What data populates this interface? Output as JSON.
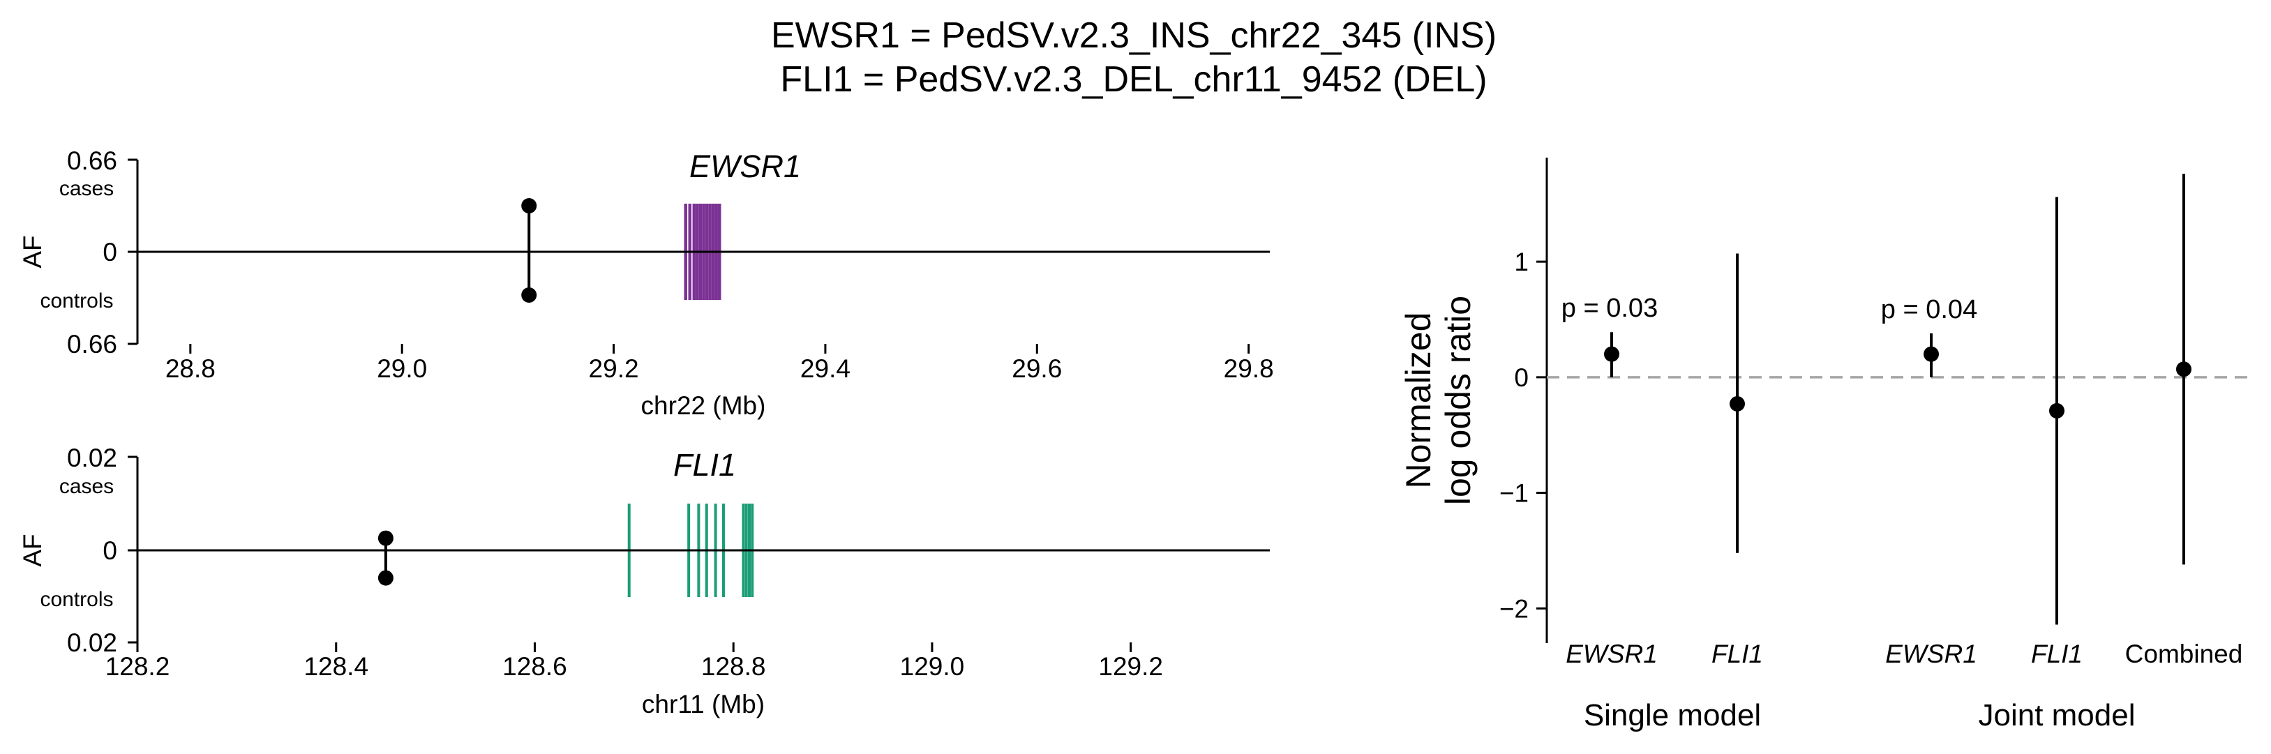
{
  "title_lines": [
    "EWSR1 = PedSV.v2.3_INS_chr22_345 (INS)",
    "FLI1 = PedSV.v2.3_DEL_chr11_9452 (DEL)"
  ],
  "colors": {
    "ewsr1": "#7b3294",
    "fli1": "#1b9e77",
    "point": "#000000",
    "reference": "#a6a6a6"
  },
  "chart_data": [
    {
      "type": "scatter",
      "gene": "EWSR1",
      "xlabel": "chr22 (Mb)",
      "ylabel": "AF",
      "xlim": [
        28.75,
        29.82
      ],
      "xticks": [
        28.8,
        29.0,
        29.2,
        29.4,
        29.6,
        29.8
      ],
      "xtick_labels": [
        "28.8",
        "29.0",
        "29.2",
        "29.4",
        "29.6",
        "29.8"
      ],
      "ylim": [
        -0.66,
        0.66
      ],
      "ytick_labels": [
        "0.66",
        "0",
        "0.66"
      ],
      "top_label": "cases",
      "bottom_label": "controls",
      "variant": {
        "x": 29.12,
        "cases": 0.33,
        "controls": -0.31
      },
      "gene_feature_color": "ewsr1",
      "exons": [
        29.268,
        29.272,
        29.276,
        29.279,
        29.282,
        29.285,
        29.288,
        29.291,
        29.294,
        29.297,
        29.3
      ]
    },
    {
      "type": "scatter",
      "gene": "FLI1",
      "xlabel": "chr11 (Mb)",
      "ylabel": "AF",
      "xlim": [
        128.2,
        129.34
      ],
      "xticks": [
        128.2,
        128.4,
        128.6,
        128.8,
        129.0,
        129.2
      ],
      "xtick_labels": [
        "128.2",
        "128.4",
        "128.6",
        "128.8",
        "129.0",
        "129.2"
      ],
      "ylim": [
        -0.02,
        0.02
      ],
      "ytick_labels": [
        "0.02",
        "0",
        "0.02"
      ],
      "top_label": "cases",
      "bottom_label": "controls",
      "variant": {
        "x": 128.45,
        "cases": 0.0026,
        "controls": -0.006
      },
      "gene_feature_color": "fli1",
      "exons": [
        128.695,
        128.755,
        128.765,
        128.773,
        128.782,
        128.79,
        128.81,
        128.813,
        128.816,
        128.819
      ]
    },
    {
      "type": "scatter",
      "ylabel": "Normalized\nlog odds ratio",
      "ylim": [
        -2.3,
        1.9
      ],
      "yticks": [
        1,
        0,
        -1,
        -2
      ],
      "ytick_labels": [
        "1",
        "0",
        "−1",
        "−2"
      ],
      "reference_line": 0,
      "points": [
        {
          "label": "EWSR1",
          "italic": true,
          "group": "Single model",
          "estimate": 0.2,
          "lower": 0.0,
          "upper": 0.39,
          "pvalue": "p = 0.03"
        },
        {
          "label": "FLI1",
          "italic": true,
          "group": "Single model",
          "estimate": -0.23,
          "lower": -1.52,
          "upper": 1.07,
          "pvalue": ""
        },
        {
          "label": "EWSR1",
          "italic": true,
          "group": "Joint model",
          "estimate": 0.2,
          "lower": 0.0,
          "upper": 0.38,
          "pvalue": "p = 0.04"
        },
        {
          "label": "FLI1",
          "italic": true,
          "group": "Joint model",
          "estimate": -0.29,
          "lower": -2.14,
          "upper": 1.56,
          "pvalue": ""
        },
        {
          "label": "Combined",
          "italic": false,
          "group": "Joint model",
          "estimate": 0.07,
          "lower": -1.62,
          "upper": 1.76,
          "pvalue": ""
        }
      ],
      "groups": [
        "Single model",
        "Joint model"
      ]
    }
  ]
}
